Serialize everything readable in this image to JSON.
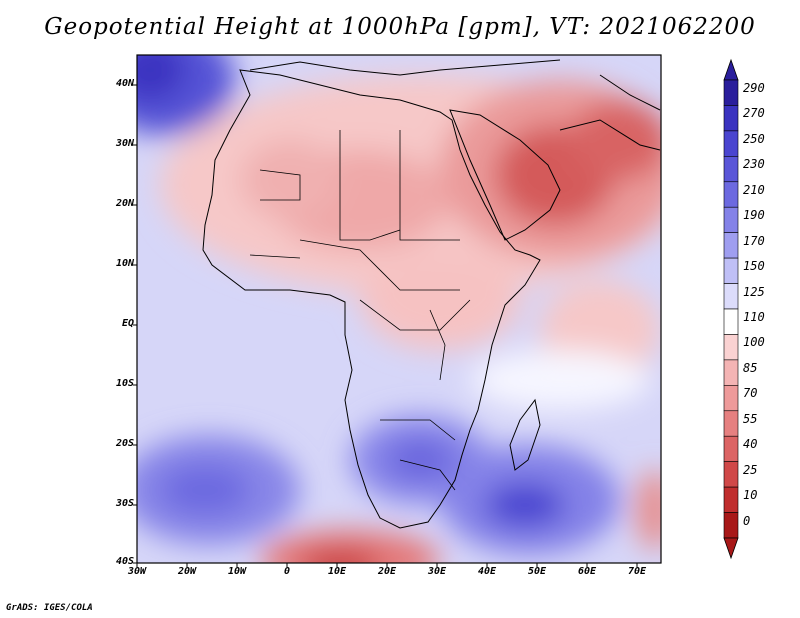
{
  "title": "Geopotential Height at 1000hPa [gpm], VT: 2021062200",
  "lat_labels": [
    "40N",
    "30N",
    "20N",
    "10N",
    "EQ",
    "10S",
    "20S",
    "30S",
    "40S"
  ],
  "lon_labels": [
    "30W",
    "20W",
    "10W",
    "0",
    "10E",
    "20E",
    "30E",
    "40E",
    "50E",
    "60E",
    "70E"
  ],
  "colorbar_labels": [
    "290",
    "270",
    "250",
    "230",
    "210",
    "190",
    "170",
    "150",
    "125",
    "110",
    "100",
    "85",
    "70",
    "55",
    "40",
    "25",
    "10",
    "0"
  ],
  "colorbar_colors": [
    "#2a1e9c",
    "#3a33c0",
    "#4a45d0",
    "#5a56d8",
    "#6c69e0",
    "#8482e8",
    "#9f9ef0",
    "#bfbff6",
    "#dcdcfb",
    "#ffffff",
    "#fad2d2",
    "#f4b4b4",
    "#ee9a9a",
    "#e68080",
    "#dc6464",
    "#d04848",
    "#c02e2e",
    "#a81818"
  ],
  "credit": "GrADS: IGES/COLA"
}
